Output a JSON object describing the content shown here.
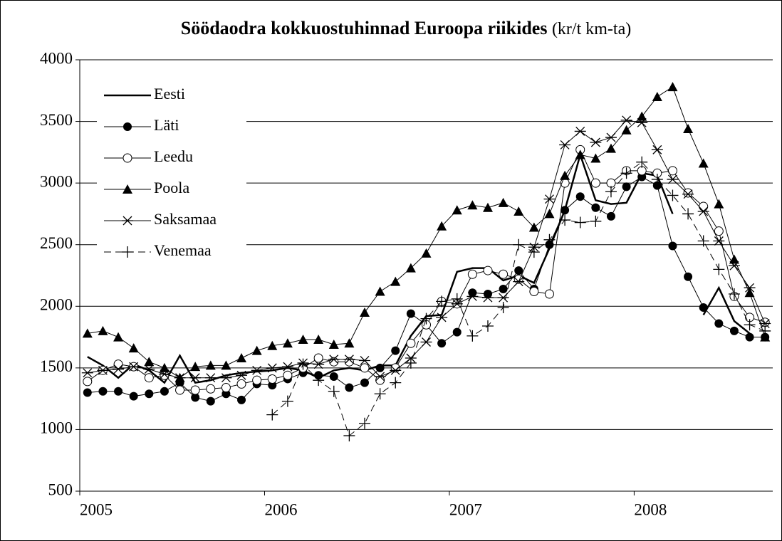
{
  "chart_data": {
    "type": "line",
    "title": "Söödaodra kokkuostuhinnad Euroopa riikides",
    "subtitle": "(kr/t km-ta)",
    "categories": [
      "2005",
      null,
      null,
      null,
      null,
      null,
      null,
      null,
      null,
      null,
      null,
      null,
      "2006",
      null,
      null,
      null,
      null,
      null,
      null,
      null,
      null,
      null,
      null,
      null,
      "2007",
      null,
      null,
      null,
      null,
      null,
      null,
      null,
      null,
      null,
      null,
      null,
      "2008",
      null,
      null,
      null,
      null,
      null,
      null,
      null,
      null
    ],
    "ylim": [
      500,
      4000
    ],
    "yticks": [
      500,
      1000,
      1500,
      2000,
      2500,
      3000,
      3500,
      4000
    ],
    "grid": true,
    "legend": "upper left",
    "series": [
      {
        "name": "Eesti",
        "color": "#000000",
        "marker": "none",
        "dash": false,
        "width": 2.5,
        "values": [
          1590,
          1520,
          1420,
          1530,
          1480,
          1380,
          1600,
          1380,
          1400,
          1440,
          1460,
          1470,
          1480,
          1500,
          1480,
          1420,
          1480,
          1500,
          1480,
          1520,
          1520,
          1760,
          1920,
          1930,
          2280,
          2310,
          2310,
          2210,
          2250,
          2190,
          2470,
          2780,
          3230,
          2860,
          2830,
          2840,
          3080,
          3060,
          2750,
          null,
          1930,
          2150,
          1880,
          1780,
          null
        ]
      },
      {
        "name": "Läti",
        "color": "#000000",
        "marker": "circle-filled",
        "dash": false,
        "width": 1,
        "values": [
          1300,
          1310,
          1310,
          1270,
          1290,
          1310,
          1380,
          1260,
          1230,
          1290,
          1240,
          1370,
          1360,
          1410,
          1460,
          1440,
          1430,
          1340,
          1380,
          1500,
          1640,
          1940,
          1850,
          1700,
          1790,
          2110,
          2100,
          2140,
          2290,
          2140,
          2500,
          2780,
          2890,
          2800,
          2730,
          2970,
          3050,
          2980,
          2490,
          2240,
          1990,
          1860,
          1800,
          1750,
          1750
        ]
      },
      {
        "name": "Leedu",
        "color": "#000000",
        "marker": "circle-open",
        "dash": false,
        "width": 1,
        "values": [
          1390,
          1480,
          1530,
          1510,
          1420,
          1440,
          1320,
          1320,
          1330,
          1340,
          1370,
          1400,
          1410,
          1440,
          1500,
          1580,
          1550,
          1550,
          1500,
          1400,
          1500,
          1700,
          1850,
          2040,
          2020,
          2260,
          2290,
          2260,
          2220,
          2120,
          2100,
          3000,
          3270,
          3000,
          3000,
          3100,
          3100,
          3080,
          3100,
          2920,
          2810,
          2610,
          2080,
          1910,
          1870
        ]
      },
      {
        "name": "Poola",
        "color": "#000000",
        "marker": "triangle",
        "dash": false,
        "width": 1,
        "values": [
          1780,
          1800,
          1750,
          1660,
          1550,
          1500,
          1420,
          1510,
          1520,
          1520,
          1580,
          1640,
          1680,
          1700,
          1730,
          1730,
          1690,
          1700,
          1950,
          2120,
          2200,
          2310,
          2430,
          2650,
          2780,
          2820,
          2800,
          2840,
          2770,
          2640,
          2750,
          3060,
          3230,
          3200,
          3280,
          3430,
          3540,
          3700,
          3780,
          3440,
          3160,
          2830,
          2380,
          2110,
          1750
        ]
      },
      {
        "name": "Saksamaa",
        "color": "#000000",
        "marker": "star",
        "dash": false,
        "width": 1,
        "values": [
          1460,
          1480,
          1490,
          1510,
          1490,
          1450,
          1420,
          1420,
          1420,
          1420,
          1440,
          1480,
          1500,
          1510,
          1540,
          1530,
          1570,
          1570,
          1560,
          1430,
          1480,
          1580,
          1710,
          1910,
          2020,
          2080,
          2070,
          2070,
          2200,
          2480,
          2870,
          3310,
          3420,
          3330,
          3370,
          3510,
          3490,
          3270,
          3030,
          2910,
          2770,
          2530,
          2330,
          2150,
          1860
        ]
      },
      {
        "name": "Venemaa",
        "color": "#000000",
        "marker": "plus",
        "dash": true,
        "width": 1,
        "values": [
          null,
          null,
          null,
          null,
          null,
          null,
          null,
          null,
          null,
          null,
          null,
          null,
          1120,
          1230,
          1530,
          1400,
          1310,
          950,
          1050,
          1290,
          1380,
          1540,
          1900,
          2040,
          2060,
          1760,
          1840,
          1990,
          2500,
          2440,
          2540,
          2700,
          2680,
          2690,
          2930,
          3080,
          3170,
          3030,
          2900,
          2750,
          2530,
          2300,
          2100,
          1850,
          1800
        ]
      }
    ]
  }
}
